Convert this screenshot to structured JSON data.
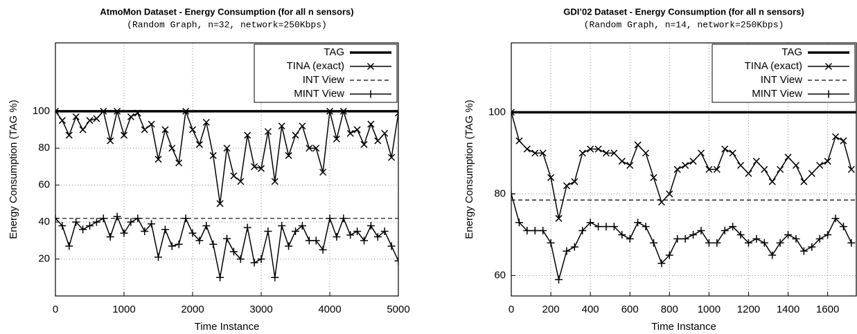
{
  "chart_data": [
    {
      "type": "line",
      "title": "AtmoMon Dataset - Energy Consumption (for all n sensors)",
      "subtitle": "(Random Graph, n=32, network=250Kbps)",
      "x_label": "Time Instance",
      "y_label": "Energy Consumption (TAG %)",
      "xlim": [
        0,
        5000
      ],
      "ylim": [
        0,
        137
      ],
      "xticks": [
        0,
        1000,
        2000,
        3000,
        4000,
        5000
      ],
      "yticks": [
        20,
        40,
        60,
        80,
        100
      ],
      "grid": true,
      "legend": "top-right",
      "x": [
        0,
        100,
        200,
        300,
        400,
        500,
        600,
        700,
        800,
        900,
        1000,
        1100,
        1200,
        1300,
        1400,
        1500,
        1600,
        1700,
        1800,
        1900,
        2000,
        2100,
        2200,
        2300,
        2400,
        2500,
        2600,
        2700,
        2800,
        2900,
        3000,
        3100,
        3200,
        3300,
        3400,
        3500,
        3600,
        3700,
        3800,
        3900,
        4000,
        4100,
        4200,
        4300,
        4400,
        4500,
        4600,
        4700,
        4800,
        4900,
        5000
      ],
      "series": [
        {
          "name": "TAG",
          "color": "#000000",
          "width": 3.5,
          "x": [
            0,
            5000
          ],
          "values": [
            100,
            100
          ]
        },
        {
          "name": "TINA (exact)",
          "color": "#000000",
          "width": 1.5,
          "marker": "x",
          "values": [
            100,
            95,
            87,
            97,
            90,
            95,
            96,
            100,
            84,
            100,
            87,
            97,
            99,
            90,
            93,
            74,
            90,
            80,
            72,
            100,
            90,
            82,
            94,
            76,
            50,
            80,
            65,
            62,
            87,
            70,
            69,
            89,
            62,
            92,
            76,
            87,
            92,
            80,
            80,
            67,
            100,
            85,
            100,
            88,
            90,
            82,
            93,
            84,
            88,
            75,
            99
          ]
        },
        {
          "name": "INT View",
          "color": "#000000",
          "width": 1.2,
          "dash": true,
          "x": [
            0,
            5000
          ],
          "values": [
            42,
            42
          ]
        },
        {
          "name": "MINT View",
          "color": "#000000",
          "width": 1.5,
          "marker": "+",
          "values": [
            42,
            38,
            27,
            40,
            36,
            38,
            40,
            42,
            32,
            43,
            34,
            40,
            42,
            35,
            39,
            21,
            36,
            27,
            28,
            42,
            34,
            30,
            38,
            28,
            10,
            31,
            24,
            20,
            37,
            18,
            20,
            35,
            10,
            38,
            27,
            35,
            38,
            30,
            30,
            25,
            42,
            32,
            42,
            33,
            35,
            30,
            38,
            32,
            35,
            27,
            19
          ]
        }
      ]
    },
    {
      "type": "line",
      "title": "GDI’02 Dataset - Energy Consumption (for all n sensors)",
      "subtitle": "(Random Graph, n=14, network=250Kbps)",
      "x_label": "Time Instance",
      "y_label": "Energy Consumption (TAG %)",
      "xlim": [
        0,
        1745
      ],
      "ylim": [
        55,
        117
      ],
      "xticks": [
        0,
        200,
        400,
        600,
        800,
        1000,
        1200,
        1400,
        1600
      ],
      "yticks": [
        60,
        80,
        100
      ],
      "grid": true,
      "legend": "top-right",
      "x": [
        0,
        40,
        80,
        120,
        160,
        200,
        240,
        280,
        320,
        360,
        400,
        440,
        480,
        520,
        560,
        600,
        640,
        680,
        720,
        760,
        800,
        840,
        880,
        920,
        960,
        1000,
        1040,
        1080,
        1120,
        1160,
        1200,
        1240,
        1280,
        1320,
        1360,
        1400,
        1440,
        1480,
        1520,
        1560,
        1600,
        1640,
        1680,
        1720
      ],
      "series": [
        {
          "name": "TAG",
          "color": "#000000",
          "width": 3.5,
          "x": [
            0,
            1745
          ],
          "values": [
            100,
            100
          ]
        },
        {
          "name": "TINA (exact)",
          "color": "#000000",
          "width": 1.5,
          "marker": "x",
          "values": [
            100,
            93,
            91,
            90,
            90,
            84,
            74,
            82,
            83,
            90,
            91,
            91,
            90,
            90,
            88,
            87,
            92,
            90,
            84,
            78,
            80,
            86,
            87,
            88,
            90,
            86,
            86,
            91,
            90,
            87,
            85,
            88,
            86,
            83,
            86,
            89,
            87,
            83,
            85,
            87,
            88,
            94,
            93,
            86
          ]
        },
        {
          "name": "INT View",
          "color": "#000000",
          "width": 1.2,
          "dash": true,
          "x": [
            0,
            1745
          ],
          "values": [
            78.5,
            78.5
          ]
        },
        {
          "name": "MINT View",
          "color": "#000000",
          "width": 1.5,
          "marker": "+",
          "values": [
            80,
            73,
            71,
            71,
            71,
            68,
            59,
            66,
            67,
            71,
            73,
            72,
            72,
            72,
            70,
            69,
            73,
            72,
            68,
            63,
            65,
            69,
            69,
            70,
            71,
            68,
            68,
            71,
            72,
            70,
            68,
            69,
            68,
            65,
            68,
            70,
            69,
            66,
            67,
            69,
            70,
            74,
            72,
            68
          ]
        }
      ]
    }
  ]
}
